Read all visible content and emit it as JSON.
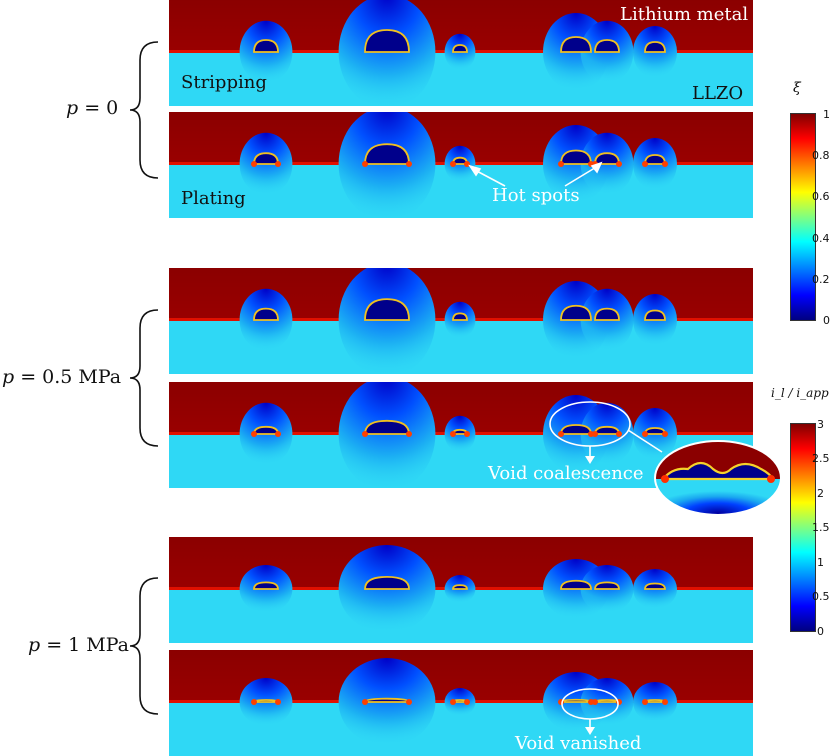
{
  "labels": {
    "lithium_metal": "Lithium metal",
    "llzo": "LLZO",
    "stripping": "Stripping",
    "plating": "Plating",
    "hot_spots": "Hot spots",
    "void_coalescence": "Void coalescence",
    "void_vanished": "Void vanished"
  },
  "pressures": [
    {
      "prefix": "p",
      "value": " = 0"
    },
    {
      "prefix": "p",
      "value": " = 0.5 MPa"
    },
    {
      "prefix": "p",
      "value": " = 1 MPa"
    }
  ],
  "colorbars": [
    {
      "label": "ξ",
      "ticks": [
        "1",
        "0.8",
        "0.6",
        "0.4",
        "0.2",
        "0"
      ],
      "range": [
        0,
        1
      ]
    },
    {
      "label": "i_l / i_app",
      "ticks": [
        "3",
        "2.5",
        "2",
        "1.5",
        "1",
        "0.5",
        "0"
      ],
      "range": [
        0,
        3
      ]
    }
  ],
  "colors": {
    "lithium": "#8b0000",
    "llzo": "#2fd8f5",
    "void": "#00008b"
  }
}
